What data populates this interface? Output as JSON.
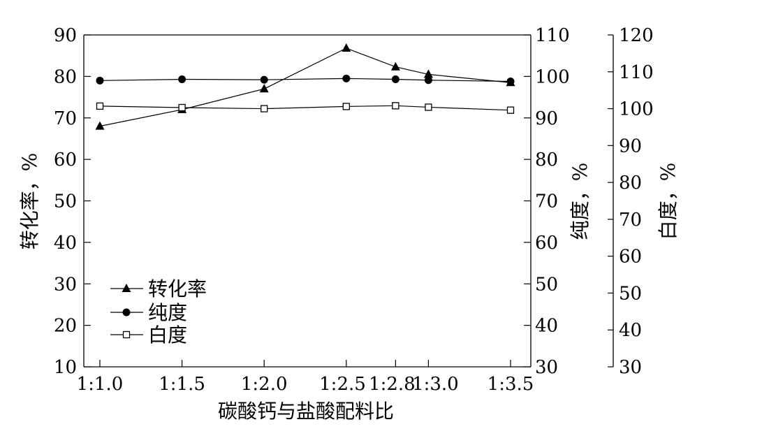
{
  "chart_data": {
    "type": "line",
    "title": "",
    "xlabel": "碳酸钙与盐酸配料比",
    "categories": [
      "1:1.0",
      "1:1.5",
      "1:2.0",
      "1:2.5",
      "1:2.8",
      "1:3.0",
      "1:3.5"
    ],
    "x_positions": [
      1.0,
      1.5,
      2.0,
      2.5,
      2.8,
      3.0,
      3.5
    ],
    "grid": false,
    "legend_placement": "bottom-left",
    "axes": {
      "left": {
        "label": "转化率，%",
        "ylim": [
          10,
          90
        ],
        "ticks": [
          10,
          20,
          30,
          40,
          50,
          60,
          70,
          80,
          90
        ]
      },
      "right1": {
        "label": "纯度，%",
        "ylim": [
          30,
          110
        ],
        "ticks": [
          30,
          40,
          50,
          60,
          70,
          80,
          90,
          100,
          110
        ]
      },
      "right2": {
        "label": "白度，%",
        "ylim": [
          30,
          120
        ],
        "ticks": [
          30,
          40,
          50,
          60,
          70,
          80,
          90,
          100,
          110,
          120
        ]
      }
    },
    "series": [
      {
        "name": "转化率",
        "axis": "left",
        "marker": "filled-triangle",
        "values": [
          68,
          72,
          77,
          86.8,
          82.3,
          80.5,
          78.5
        ]
      },
      {
        "name": "纯度",
        "axis": "right1",
        "marker": "filled-circle",
        "values": [
          99,
          99.3,
          99.2,
          99.5,
          99.3,
          99.1,
          98.8
        ]
      },
      {
        "name": "白度",
        "axis": "right2",
        "marker": "open-square",
        "values": [
          100.7,
          100.3,
          100,
          100.6,
          100.8,
          100.4,
          99.6
        ]
      }
    ]
  }
}
